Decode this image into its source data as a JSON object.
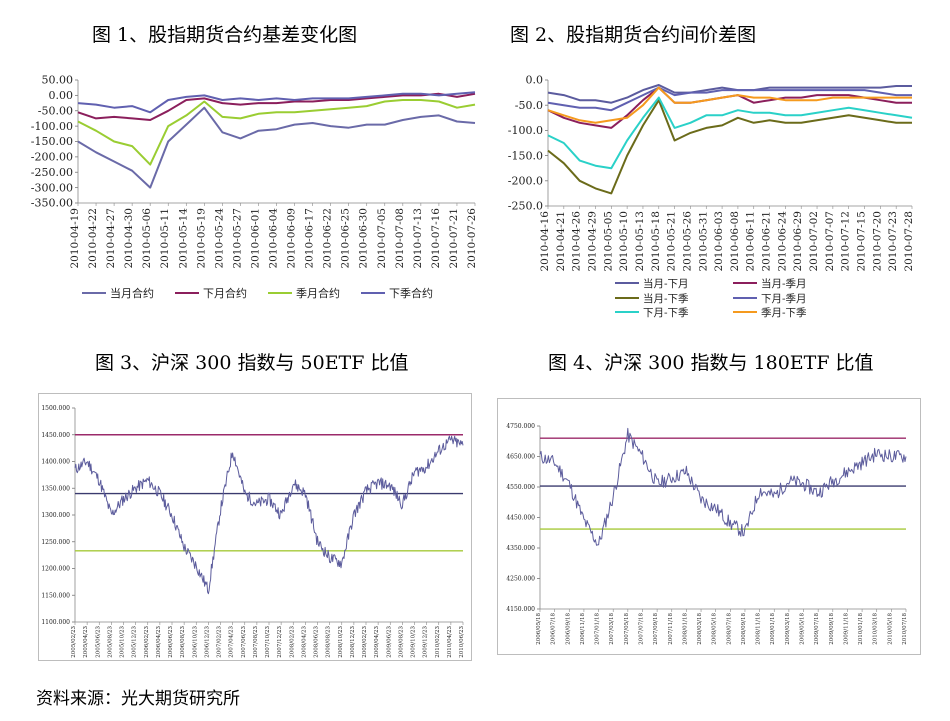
{
  "charts": [
    {
      "title": "图 1、股指期货合约基差变化图",
      "type": "line",
      "ylim": [
        -350,
        50
      ],
      "ticks": [
        "50.00",
        "0.00",
        "-50.00",
        "-100.00",
        "-150.00",
        "-200.00",
        "-250.00",
        "-300.00",
        "-350.00"
      ],
      "xlabels": [
        "2010-04-19",
        "2010-04-22",
        "2010-04-27",
        "2010-04-30",
        "2010-05-06",
        "2010-05-11",
        "2010-05-14",
        "2010-05-19",
        "2010-05-24",
        "2010-05-27",
        "2010-06-01",
        "2010-06-04",
        "2010-06-09",
        "2010-06-17",
        "2010-06-22",
        "2010-06-25",
        "2010-06-30",
        "2010-07-05",
        "2010-07-08",
        "2010-07-13",
        "2010-07-16",
        "2010-07-21",
        "2010-07-26"
      ],
      "legend": [
        "当月合约",
        "下月合约",
        "季月合约",
        "下季合约"
      ]
    },
    {
      "title": "图 2、股指期货合约间价差图",
      "type": "line",
      "ylim": [
        -250,
        0
      ],
      "ticks": [
        "0.0",
        "-50.0",
        "-100.0",
        "-150.0",
        "-200.0",
        "-250.0"
      ],
      "xlabels": [
        "2010-04-16",
        "2010-04-21",
        "2010-04-26",
        "2010-04-29",
        "2010-05-05",
        "2010-05-10",
        "2010-05-13",
        "2010-05-18",
        "2010-05-21",
        "2010-05-26",
        "2010-05-31",
        "2010-06-03",
        "2010-06-08",
        "2010-06-11",
        "2010-06-21",
        "2010-06-24",
        "2010-06-29",
        "2010-07-02",
        "2010-07-07",
        "2010-07-12",
        "2010-07-15",
        "2010-07-20",
        "2010-07-23",
        "2010-07-28"
      ],
      "legend": [
        "当月-下月",
        "当月-季月",
        "当月-下季",
        "下月-季月",
        "下月-下季",
        "季月-下季"
      ]
    },
    {
      "title": "图 3、沪深 300 指数与 50ETF 比值",
      "type": "line",
      "ylim": [
        1100,
        1500
      ],
      "ticks": [
        "1500.000",
        "1450.000",
        "1400.000",
        "1350.000",
        "1300.000",
        "1250.000",
        "1200.000",
        "1150.000",
        "1100.000"
      ],
      "hlines": [
        1450,
        1340,
        1233
      ],
      "xlabels": [
        "2005/02/23",
        "2005/04/23",
        "2005/06/23",
        "2005/08/23",
        "2005/10/23",
        "2005/12/23",
        "2006/02/23",
        "2006/04/23",
        "2006/06/23",
        "2006/08/23",
        "2006/10/23",
        "2006/12/23",
        "2007/02/23",
        "2007/04/23",
        "2007/06/23",
        "2007/08/23",
        "2007/10/23",
        "2007/12/23",
        "2008/02/23",
        "2008/04/23",
        "2008/06/23",
        "2008/08/23",
        "2008/10/23",
        "2008/12/23",
        "2009/02/23",
        "2009/04/23",
        "2009/06/23",
        "2009/08/23",
        "2009/10/23",
        "2009/12/23",
        "2010/02/23",
        "2010/04/23",
        "2010/06/23"
      ]
    },
    {
      "title": "图 4、沪深 300 指数与 180ETF 比值",
      "type": "line",
      "ylim": [
        4150,
        4750
      ],
      "ticks": [
        "4750.000",
        "4650.000",
        "4550.000",
        "4450.000",
        "4350.000",
        "4250.000",
        "4150.000"
      ],
      "hlines": [
        4710,
        4553,
        4412
      ],
      "xlabels": [
        "2006/05/18",
        "2006/07/18",
        "2006/09/18",
        "2006/11/18",
        "2007/01/18",
        "2007/03/18",
        "2007/05/18",
        "2007/07/18",
        "2007/09/18",
        "2007/11/18",
        "2008/01/18",
        "2008/03/18",
        "2008/05/18",
        "2008/07/18",
        "2008/09/18",
        "2008/11/18",
        "2009/01/18",
        "2009/03/18",
        "2009/05/18",
        "2009/07/18",
        "2009/09/18",
        "2009/11/18",
        "2010/01/18",
        "2010/03/18",
        "2010/05/18",
        "2010/07/18"
      ]
    }
  ],
  "source": "资料来源：光大期货研究所",
  "chart_data": [
    {
      "type": "line",
      "title": "图 1、股指期货合约基差变化图",
      "ylim": [
        -350,
        50
      ],
      "x": [
        "2010-04-19",
        "2010-04-22",
        "2010-04-27",
        "2010-04-30",
        "2010-05-06",
        "2010-05-11",
        "2010-05-14",
        "2010-05-19",
        "2010-05-24",
        "2010-05-27",
        "2010-06-01",
        "2010-06-04",
        "2010-06-09",
        "2010-06-17",
        "2010-06-22",
        "2010-06-25",
        "2010-06-30",
        "2010-07-05",
        "2010-07-08",
        "2010-07-13",
        "2010-07-16",
        "2010-07-21",
        "2010-07-26"
      ],
      "series": [
        {
          "name": "当月合约",
          "color": "#6a6aa8",
          "values": [
            -150,
            -185,
            -215,
            -245,
            -300,
            -150,
            -95,
            -40,
            -120,
            -140,
            -115,
            -110,
            -95,
            -90,
            -100,
            -105,
            -95,
            -95,
            -80,
            -70,
            -65,
            -85,
            -90
          ]
        },
        {
          "name": "下月合约",
          "color": "#8b1f5c",
          "values": [
            -55,
            -75,
            -70,
            -75,
            -80,
            -50,
            -15,
            -10,
            -25,
            -30,
            -25,
            -25,
            -20,
            -20,
            -15,
            -15,
            -10,
            -5,
            0,
            0,
            5,
            -5,
            5
          ]
        },
        {
          "name": "季月合约",
          "color": "#9acd32",
          "values": [
            -85,
            -115,
            -150,
            -165,
            -225,
            -100,
            -65,
            -20,
            -70,
            -75,
            -60,
            -55,
            -55,
            -50,
            -45,
            -40,
            -35,
            -20,
            -15,
            -15,
            -20,
            -40,
            -30
          ]
        },
        {
          "name": "下季合约",
          "color": "#6060b0",
          "values": [
            -25,
            -30,
            -40,
            -35,
            -55,
            -15,
            -5,
            0,
            -15,
            -10,
            -15,
            -10,
            -15,
            -10,
            -10,
            -10,
            -5,
            0,
            5,
            5,
            0,
            5,
            10
          ]
        }
      ]
    },
    {
      "type": "line",
      "title": "图 2、股指期货合约间价差图",
      "ylim": [
        -250,
        0
      ],
      "x": [
        "2010-04-16",
        "2010-04-21",
        "2010-04-26",
        "2010-04-29",
        "2010-05-05",
        "2010-05-10",
        "2010-05-13",
        "2010-05-18",
        "2010-05-21",
        "2010-05-26",
        "2010-05-31",
        "2010-06-03",
        "2010-06-08",
        "2010-06-11",
        "2010-06-21",
        "2010-06-24",
        "2010-06-29",
        "2010-07-02",
        "2010-07-07",
        "2010-07-12",
        "2010-07-15",
        "2010-07-20",
        "2010-07-23",
        "2010-07-28"
      ],
      "series": [
        {
          "name": "当月-下月",
          "color": "#5b5b9e",
          "values": [
            -25,
            -30,
            -40,
            -40,
            -45,
            -35,
            -20,
            -10,
            -25,
            -25,
            -20,
            -15,
            -20,
            -20,
            -15,
            -15,
            -15,
            -15,
            -15,
            -15,
            -15,
            -15,
            -12,
            -12
          ]
        },
        {
          "name": "当月-季月",
          "color": "#8b1f5c",
          "values": [
            -60,
            -75,
            -85,
            -90,
            -95,
            -70,
            -40,
            -15,
            -45,
            -45,
            -40,
            -35,
            -30,
            -45,
            -40,
            -35,
            -35,
            -30,
            -30,
            -30,
            -35,
            -40,
            -45,
            -45
          ]
        },
        {
          "name": "当月-下季",
          "color": "#6b6b1a",
          "values": [
            -140,
            -165,
            -200,
            -215,
            -225,
            -150,
            -90,
            -40,
            -120,
            -105,
            -95,
            -90,
            -75,
            -85,
            -80,
            -85,
            -85,
            -80,
            -75,
            -70,
            -75,
            -80,
            -85,
            -85
          ]
        },
        {
          "name": "下月-季月",
          "color": "#6060b0",
          "values": [
            -45,
            -50,
            -55,
            -55,
            -60,
            -45,
            -30,
            -15,
            -30,
            -25,
            -25,
            -20,
            -20,
            -20,
            -20,
            -20,
            -20,
            -20,
            -20,
            -20,
            -20,
            -25,
            -30,
            -30
          ]
        },
        {
          "name": "下月-下季",
          "color": "#2ad1c8",
          "values": [
            -110,
            -125,
            -160,
            -170,
            -175,
            -120,
            -75,
            -35,
            -95,
            -85,
            -70,
            -70,
            -60,
            -65,
            -65,
            -70,
            -70,
            -65,
            -60,
            -55,
            -60,
            -65,
            -70,
            -75
          ]
        },
        {
          "name": "季月-下季",
          "color": "#f59a1e",
          "values": [
            -60,
            -70,
            -80,
            -85,
            -80,
            -75,
            -50,
            -15,
            -45,
            -45,
            -40,
            -35,
            -30,
            -35,
            -35,
            -40,
            -40,
            -40,
            -35,
            -35,
            -35,
            -35,
            -35,
            -35
          ]
        }
      ]
    },
    {
      "type": "line",
      "title": "图 3、沪深 300 指数与 50ETF 比值",
      "ylim": [
        1100,
        1500
      ],
      "hlines": [
        1450,
        1340,
        1233
      ],
      "x": [
        "2005/02/23",
        "2005/04/23",
        "2005/06/23",
        "2005/08/23",
        "2005/10/23",
        "2005/12/23",
        "2006/02/23",
        "2006/04/23",
        "2006/06/23",
        "2006/08/23",
        "2006/10/23",
        "2006/12/23",
        "2007/02/23",
        "2007/04/23",
        "2007/06/23",
        "2007/08/23",
        "2007/10/23",
        "2007/12/23",
        "2008/02/23",
        "2008/04/23",
        "2008/06/23",
        "2008/08/23",
        "2008/10/23",
        "2008/12/23",
        "2009/02/23",
        "2009/04/23",
        "2009/06/23",
        "2009/08/23",
        "2009/10/23",
        "2009/12/23",
        "2010/02/23",
        "2010/04/23",
        "2010/06/23"
      ],
      "series": [
        {
          "name": "",
          "color": "#5c5c9c",
          "values": [
            1385,
            1400,
            1365,
            1300,
            1330,
            1350,
            1365,
            1340,
            1300,
            1240,
            1205,
            1160,
            1310,
            1420,
            1340,
            1320,
            1330,
            1300,
            1360,
            1340,
            1250,
            1220,
            1210,
            1300,
            1345,
            1360,
            1355,
            1320,
            1380,
            1390,
            1420,
            1440,
            1430
          ]
        }
      ]
    },
    {
      "type": "line",
      "title": "图 4、沪深 300 指数与 180ETF 比值",
      "ylim": [
        4150,
        4750
      ],
      "hlines": [
        4710,
        4553,
        4412
      ],
      "x": [
        "2006/05/18",
        "2006/07/18",
        "2006/09/18",
        "2006/11/18",
        "2007/01/18",
        "2007/03/18",
        "2007/05/18",
        "2007/07/18",
        "2007/09/18",
        "2007/11/18",
        "2008/01/18",
        "2008/03/18",
        "2008/05/18",
        "2008/07/18",
        "2008/09/18",
        "2008/11/18",
        "2009/01/18",
        "2009/03/18",
        "2009/05/18",
        "2009/07/18",
        "2009/09/18",
        "2009/11/18",
        "2010/01/18",
        "2010/03/18",
        "2010/05/18",
        "2010/07/18"
      ],
      "series": [
        {
          "name": "",
          "color": "#5c5c9c",
          "values": [
            4650,
            4630,
            4560,
            4440,
            4360,
            4520,
            4720,
            4650,
            4560,
            4580,
            4600,
            4510,
            4480,
            4430,
            4400,
            4540,
            4520,
            4570,
            4560,
            4530,
            4570,
            4600,
            4630,
            4660,
            4650,
            4650
          ]
        }
      ]
    }
  ]
}
